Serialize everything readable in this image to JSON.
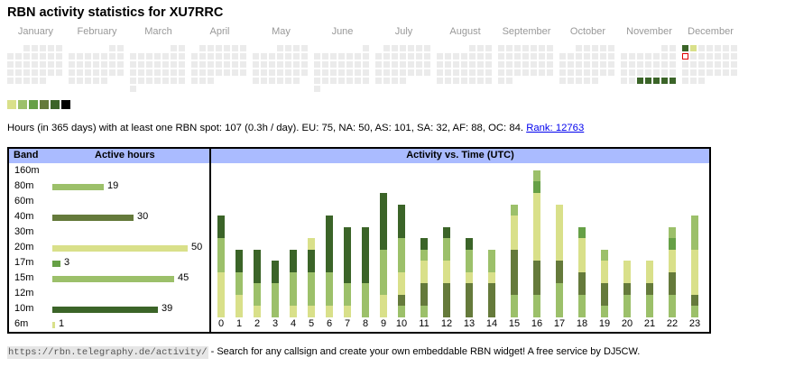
{
  "title": "RBN activity statistics for XU7RRC",
  "calendar": {
    "months": [
      {
        "name": "January",
        "days": 31,
        "start_weekday": 2
      },
      {
        "name": "February",
        "days": 28,
        "start_weekday": 5
      },
      {
        "name": "March",
        "days": 31,
        "start_weekday": 5
      },
      {
        "name": "April",
        "days": 30,
        "start_weekday": 1
      },
      {
        "name": "May",
        "days": 31,
        "start_weekday": 3
      },
      {
        "name": "June",
        "days": 30,
        "start_weekday": 6
      },
      {
        "name": "July",
        "days": 31,
        "start_weekday": 1
      },
      {
        "name": "August",
        "days": 31,
        "start_weekday": 4
      },
      {
        "name": "September",
        "days": 30,
        "start_weekday": 0
      },
      {
        "name": "October",
        "days": 31,
        "start_weekday": 2
      },
      {
        "name": "November",
        "days": 30,
        "start_weekday": 5
      },
      {
        "name": "December",
        "days": 31,
        "start_weekday": 0
      }
    ],
    "active_days": [
      {
        "month": 11,
        "day": 26,
        "level": 5
      },
      {
        "month": 11,
        "day": 27,
        "level": 5
      },
      {
        "month": 11,
        "day": 28,
        "level": 5
      },
      {
        "month": 11,
        "day": 29,
        "level": 5
      },
      {
        "month": 11,
        "day": 30,
        "level": 5
      },
      {
        "month": 12,
        "day": 1,
        "level": 5
      },
      {
        "month": 12,
        "day": 2,
        "level": 1
      }
    ],
    "today": {
      "month": 12,
      "day": 8
    },
    "level_colors": [
      "#ebebeb",
      "#d9e08a",
      "#9cc06a",
      "#66a046",
      "#657a3b",
      "#3b6428",
      "#000000"
    ]
  },
  "stats": {
    "text": "Hours (in 365 days) with at least one RBN spot: 107 (0.3h / day). EU: 75, NA: 50, AS: 101, SA: 32, AF: 88, OC: 84. ",
    "rank_label": "Rank: 12763"
  },
  "band_table": {
    "header_band": "Band",
    "header_hours": "Active hours",
    "rows": [
      {
        "band": "160m",
        "hours": null,
        "color": ""
      },
      {
        "band": "80m",
        "hours": 19,
        "color": "#9cc06a"
      },
      {
        "band": "60m",
        "hours": null,
        "color": ""
      },
      {
        "band": "40m",
        "hours": 30,
        "color": "#657a3b"
      },
      {
        "band": "30m",
        "hours": null,
        "color": ""
      },
      {
        "band": "20m",
        "hours": 50,
        "color": "#d9e08a"
      },
      {
        "band": "17m",
        "hours": 3,
        "color": "#66a046"
      },
      {
        "band": "15m",
        "hours": 45,
        "color": "#9cc06a"
      },
      {
        "band": "12m",
        "hours": null,
        "color": ""
      },
      {
        "band": "10m",
        "hours": 39,
        "color": "#3b6428"
      },
      {
        "band": "6m",
        "hours": 1,
        "color": "#d9e08a"
      }
    ]
  },
  "chart_data": {
    "type": "bar",
    "title": "Activity vs. Time (UTC)",
    "stacked": true,
    "band_colors": {
      "80m": "#9cc06a",
      "40m": "#657a3b",
      "20m": "#d9e08a",
      "17m": "#66a046",
      "15m": "#9cc06a",
      "10m": "#3b6428",
      "6m": "#d9e08a"
    },
    "categories": [
      "0",
      "1",
      "2",
      "3",
      "4",
      "5",
      "6",
      "7",
      "8",
      "9",
      "10",
      "11",
      "12",
      "13",
      "14",
      "15",
      "16",
      "17",
      "18",
      "19",
      "20",
      "21",
      "22",
      "23"
    ],
    "stacks": [
      [
        [
          "20m",
          4
        ],
        [
          "15m",
          3
        ],
        [
          "10m",
          2
        ]
      ],
      [
        [
          "20m",
          2
        ],
        [
          "15m",
          2
        ],
        [
          "10m",
          2
        ]
      ],
      [
        [
          "20m",
          1
        ],
        [
          "15m",
          2
        ],
        [
          "10m",
          3
        ]
      ],
      [
        [
          "15m",
          3
        ],
        [
          "10m",
          2
        ]
      ],
      [
        [
          "20m",
          1
        ],
        [
          "15m",
          3
        ],
        [
          "10m",
          2
        ]
      ],
      [
        [
          "20m",
          1
        ],
        [
          "15m",
          3
        ],
        [
          "10m",
          2
        ],
        [
          "6m",
          1
        ]
      ],
      [
        [
          "20m",
          1
        ],
        [
          "15m",
          3
        ],
        [
          "10m",
          5
        ]
      ],
      [
        [
          "20m",
          1
        ],
        [
          "15m",
          2
        ],
        [
          "10m",
          5
        ]
      ],
      [
        [
          "15m",
          3
        ],
        [
          "10m",
          5
        ]
      ],
      [
        [
          "20m",
          2
        ],
        [
          "15m",
          4
        ],
        [
          "10m",
          5
        ]
      ],
      [
        [
          "80m",
          1
        ],
        [
          "40m",
          1
        ],
        [
          "20m",
          2
        ],
        [
          "15m",
          3
        ],
        [
          "10m",
          3
        ]
      ],
      [
        [
          "80m",
          1
        ],
        [
          "40m",
          2
        ],
        [
          "20m",
          2
        ],
        [
          "15m",
          1
        ],
        [
          "10m",
          1
        ]
      ],
      [
        [
          "40m",
          3
        ],
        [
          "20m",
          2
        ],
        [
          "15m",
          2
        ],
        [
          "10m",
          1
        ]
      ],
      [
        [
          "40m",
          3
        ],
        [
          "20m",
          1
        ],
        [
          "15m",
          2
        ],
        [
          "10m",
          1
        ]
      ],
      [
        [
          "40m",
          3
        ],
        [
          "20m",
          1
        ],
        [
          "15m",
          2
        ]
      ],
      [
        [
          "80m",
          2
        ],
        [
          "40m",
          4
        ],
        [
          "20m",
          3
        ],
        [
          "15m",
          1
        ]
      ],
      [
        [
          "80m",
          2
        ],
        [
          "40m",
          3
        ],
        [
          "20m",
          6
        ],
        [
          "17m",
          1
        ],
        [
          "15m",
          1
        ]
      ],
      [
        [
          "80m",
          3
        ],
        [
          "40m",
          2
        ],
        [
          "20m",
          5
        ]
      ],
      [
        [
          "80m",
          2
        ],
        [
          "40m",
          2
        ],
        [
          "20m",
          3
        ],
        [
          "17m",
          1
        ]
      ],
      [
        [
          "80m",
          1
        ],
        [
          "40m",
          2
        ],
        [
          "20m",
          2
        ],
        [
          "15m",
          1
        ]
      ],
      [
        [
          "80m",
          2
        ],
        [
          "40m",
          1
        ],
        [
          "20m",
          2
        ]
      ],
      [
        [
          "80m",
          2
        ],
        [
          "40m",
          1
        ],
        [
          "20m",
          2
        ]
      ],
      [
        [
          "80m",
          2
        ],
        [
          "40m",
          2
        ],
        [
          "20m",
          2
        ],
        [
          "17m",
          1
        ],
        [
          "15m",
          1
        ]
      ],
      [
        [
          "80m",
          1
        ],
        [
          "40m",
          1
        ],
        [
          "20m",
          4
        ],
        [
          "15m",
          3
        ]
      ]
    ],
    "ylim": [
      0,
      13
    ]
  },
  "footer": {
    "url": "https://rbn.telegraphy.de/activity/",
    "text": " - Search for any callsign and create your own embeddable RBN widget! A free service by DJ5CW."
  }
}
